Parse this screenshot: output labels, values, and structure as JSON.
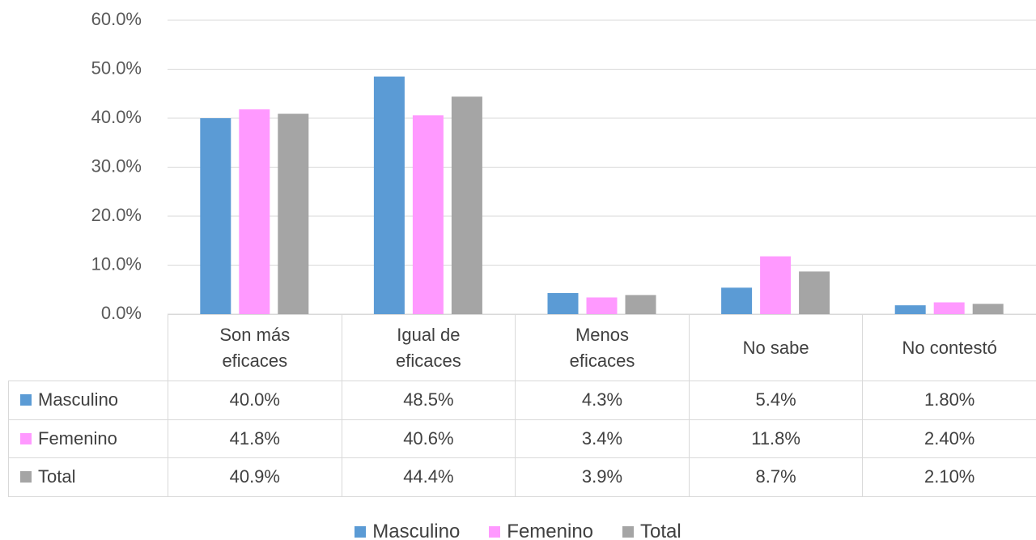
{
  "chart_data": {
    "type": "bar",
    "categories": [
      "Son más eficaces",
      "Igual de eficaces",
      "Menos eficaces",
      "No sabe",
      "No contestó"
    ],
    "series": [
      {
        "name": "Masculino",
        "color": "#5b9bd5",
        "values": [
          40.0,
          48.5,
          4.3,
          5.4,
          1.8
        ],
        "value_labels": [
          "40.0%",
          "48.5%",
          "4.3%",
          "5.4%",
          "1.80%"
        ]
      },
      {
        "name": "Femenino",
        "color": "#ff99ff",
        "values": [
          41.8,
          40.6,
          3.4,
          11.8,
          2.4
        ],
        "value_labels": [
          "41.8%",
          "40.6%",
          "3.4%",
          "11.8%",
          "2.40%"
        ]
      },
      {
        "name": "Total",
        "color": "#a5a5a5",
        "values": [
          40.9,
          44.4,
          3.9,
          8.7,
          2.1
        ],
        "value_labels": [
          "40.9%",
          "44.4%",
          "3.9%",
          "8.7%",
          "2.10%"
        ]
      }
    ],
    "ylim": [
      0,
      60
    ],
    "yticks": [
      {
        "value": 0,
        "label": "0.0%"
      },
      {
        "value": 10,
        "label": "10.0%"
      },
      {
        "value": 20,
        "label": "20.0%"
      },
      {
        "value": 30,
        "label": "30.0%"
      },
      {
        "value": 40,
        "label": "40.0%"
      },
      {
        "value": 50,
        "label": "50.0%"
      },
      {
        "value": 60,
        "label": "60.0%"
      }
    ],
    "grid": true
  }
}
